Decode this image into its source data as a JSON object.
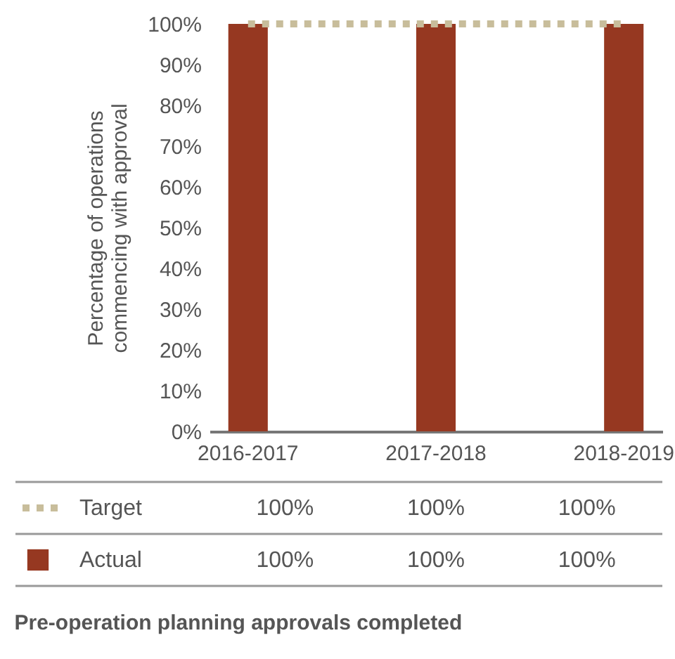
{
  "chart_data": {
    "type": "bar",
    "title": "Pre-operation planning approvals completed",
    "ylabel": "Percentage of operations commencing with approval",
    "categories": [
      "2016-2017",
      "2017-2018",
      "2018-2019"
    ],
    "series": [
      {
        "name": "Target",
        "type": "line",
        "line_style": "dotted",
        "color": "#c8bd9b",
        "values": [
          100,
          100,
          100
        ],
        "value_labels": [
          "100%",
          "100%",
          "100%"
        ]
      },
      {
        "name": "Actual",
        "type": "bar",
        "color": "#963821",
        "values": [
          100,
          100,
          100
        ],
        "value_labels": [
          "100%",
          "100%",
          "100%"
        ]
      }
    ],
    "ylim": [
      0,
      100
    ],
    "yticks": [
      {
        "value": 0,
        "label": "0%"
      },
      {
        "value": 10,
        "label": "10%"
      },
      {
        "value": 20,
        "label": "20%"
      },
      {
        "value": 30,
        "label": "30%"
      },
      {
        "value": 40,
        "label": "40%"
      },
      {
        "value": 50,
        "label": "50%"
      },
      {
        "value": 60,
        "label": "60%"
      },
      {
        "value": 70,
        "label": "70%"
      },
      {
        "value": 80,
        "label": "80%"
      },
      {
        "value": 90,
        "label": "90%"
      },
      {
        "value": 100,
        "label": "100%"
      }
    ],
    "grid": false,
    "legend": "bottom"
  }
}
